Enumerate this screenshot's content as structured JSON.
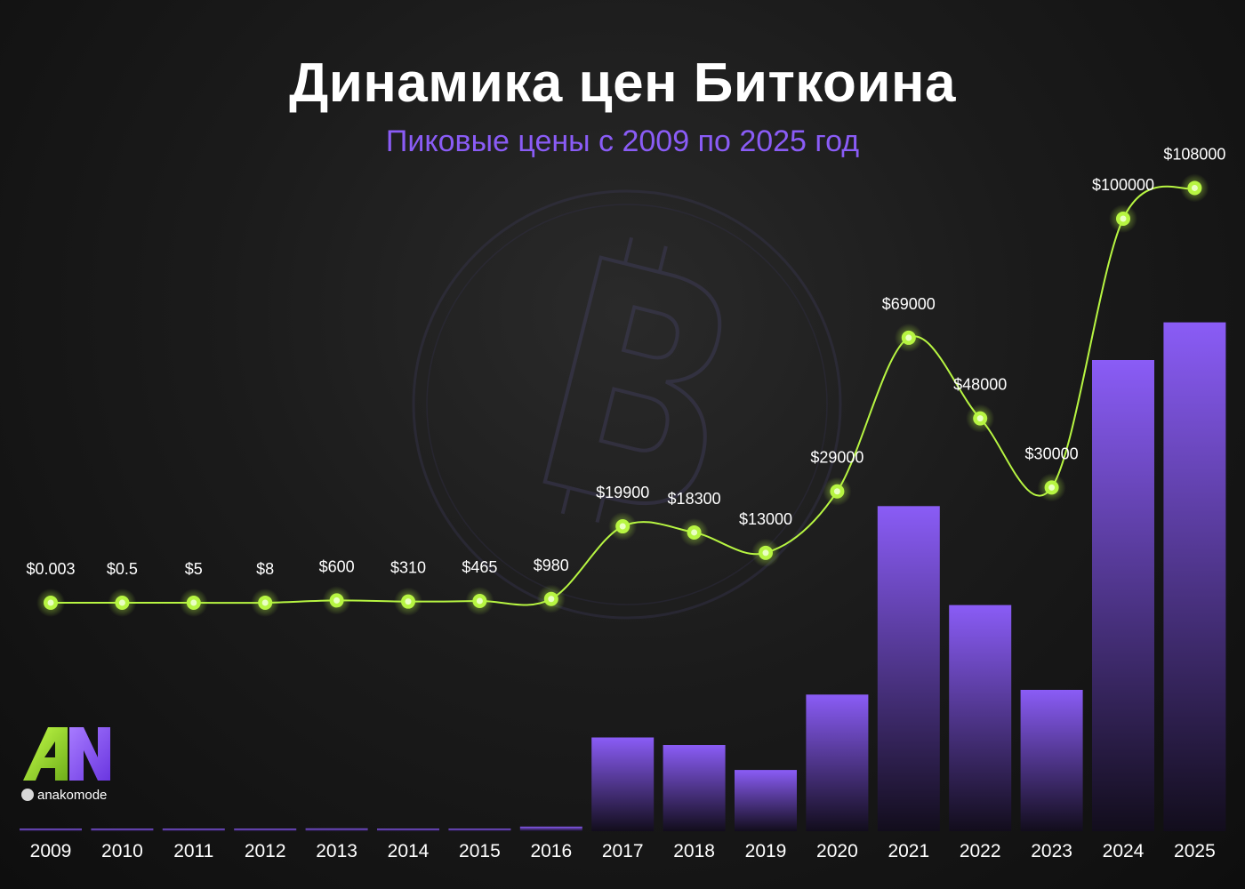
{
  "title": "Динамика цен Биткоина",
  "subtitle": "Пиковые цены с 2009 по 2025 год",
  "brand": {
    "logo_letters": "AN",
    "handle": "anakomode",
    "accent_color": "#b7f542",
    "bar_color": "#8a5cf6"
  },
  "background_icon": "bitcoin-icon",
  "chart_data": {
    "type": "bar",
    "categories": [
      "2009",
      "2010",
      "2011",
      "2012",
      "2013",
      "2014",
      "2015",
      "2016",
      "2017",
      "2018",
      "2019",
      "2020",
      "2021",
      "2022",
      "2023",
      "2024",
      "2025"
    ],
    "values": [
      0.003,
      0.5,
      5,
      8,
      600,
      310,
      465,
      980,
      19900,
      18300,
      13000,
      29000,
      69000,
      48000,
      30000,
      100000,
      108000
    ],
    "value_labels": [
      "$0.003",
      "$0.5",
      "$5",
      "$8",
      "$600",
      "$310",
      "$465",
      "$980",
      "$19900",
      "$18300",
      "$13000",
      "$29000",
      "$69000",
      "$48000",
      "$30000",
      "$100000",
      "$108000"
    ],
    "line_overlay": true,
    "grid": false,
    "title": "Динамика цен Биткоина",
    "xlabel": "",
    "ylabel": ""
  }
}
